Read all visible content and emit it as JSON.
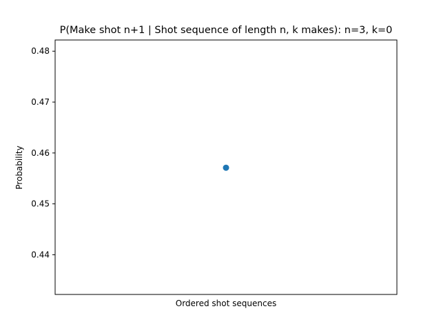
{
  "chart_data": {
    "type": "scatter",
    "title": "P(Make shot n+1 | Shot sequence of length n, k makes): n=3, k=0",
    "xlabel": "Ordered shot sequences",
    "ylabel": "Probability",
    "ylim": [
      0.4322,
      0.4822
    ],
    "yticks": [
      0.44,
      0.45,
      0.46,
      0.47,
      0.48
    ],
    "ytick_labels": [
      "0.44",
      "0.45",
      "0.46",
      "0.47",
      "0.48"
    ],
    "x_tick_labels_visible": false,
    "grid": false,
    "legend": "none",
    "series": [
      {
        "color": "#1f77b4",
        "points": [
          {
            "x": 0,
            "y": 0.4571
          }
        ]
      }
    ]
  }
}
